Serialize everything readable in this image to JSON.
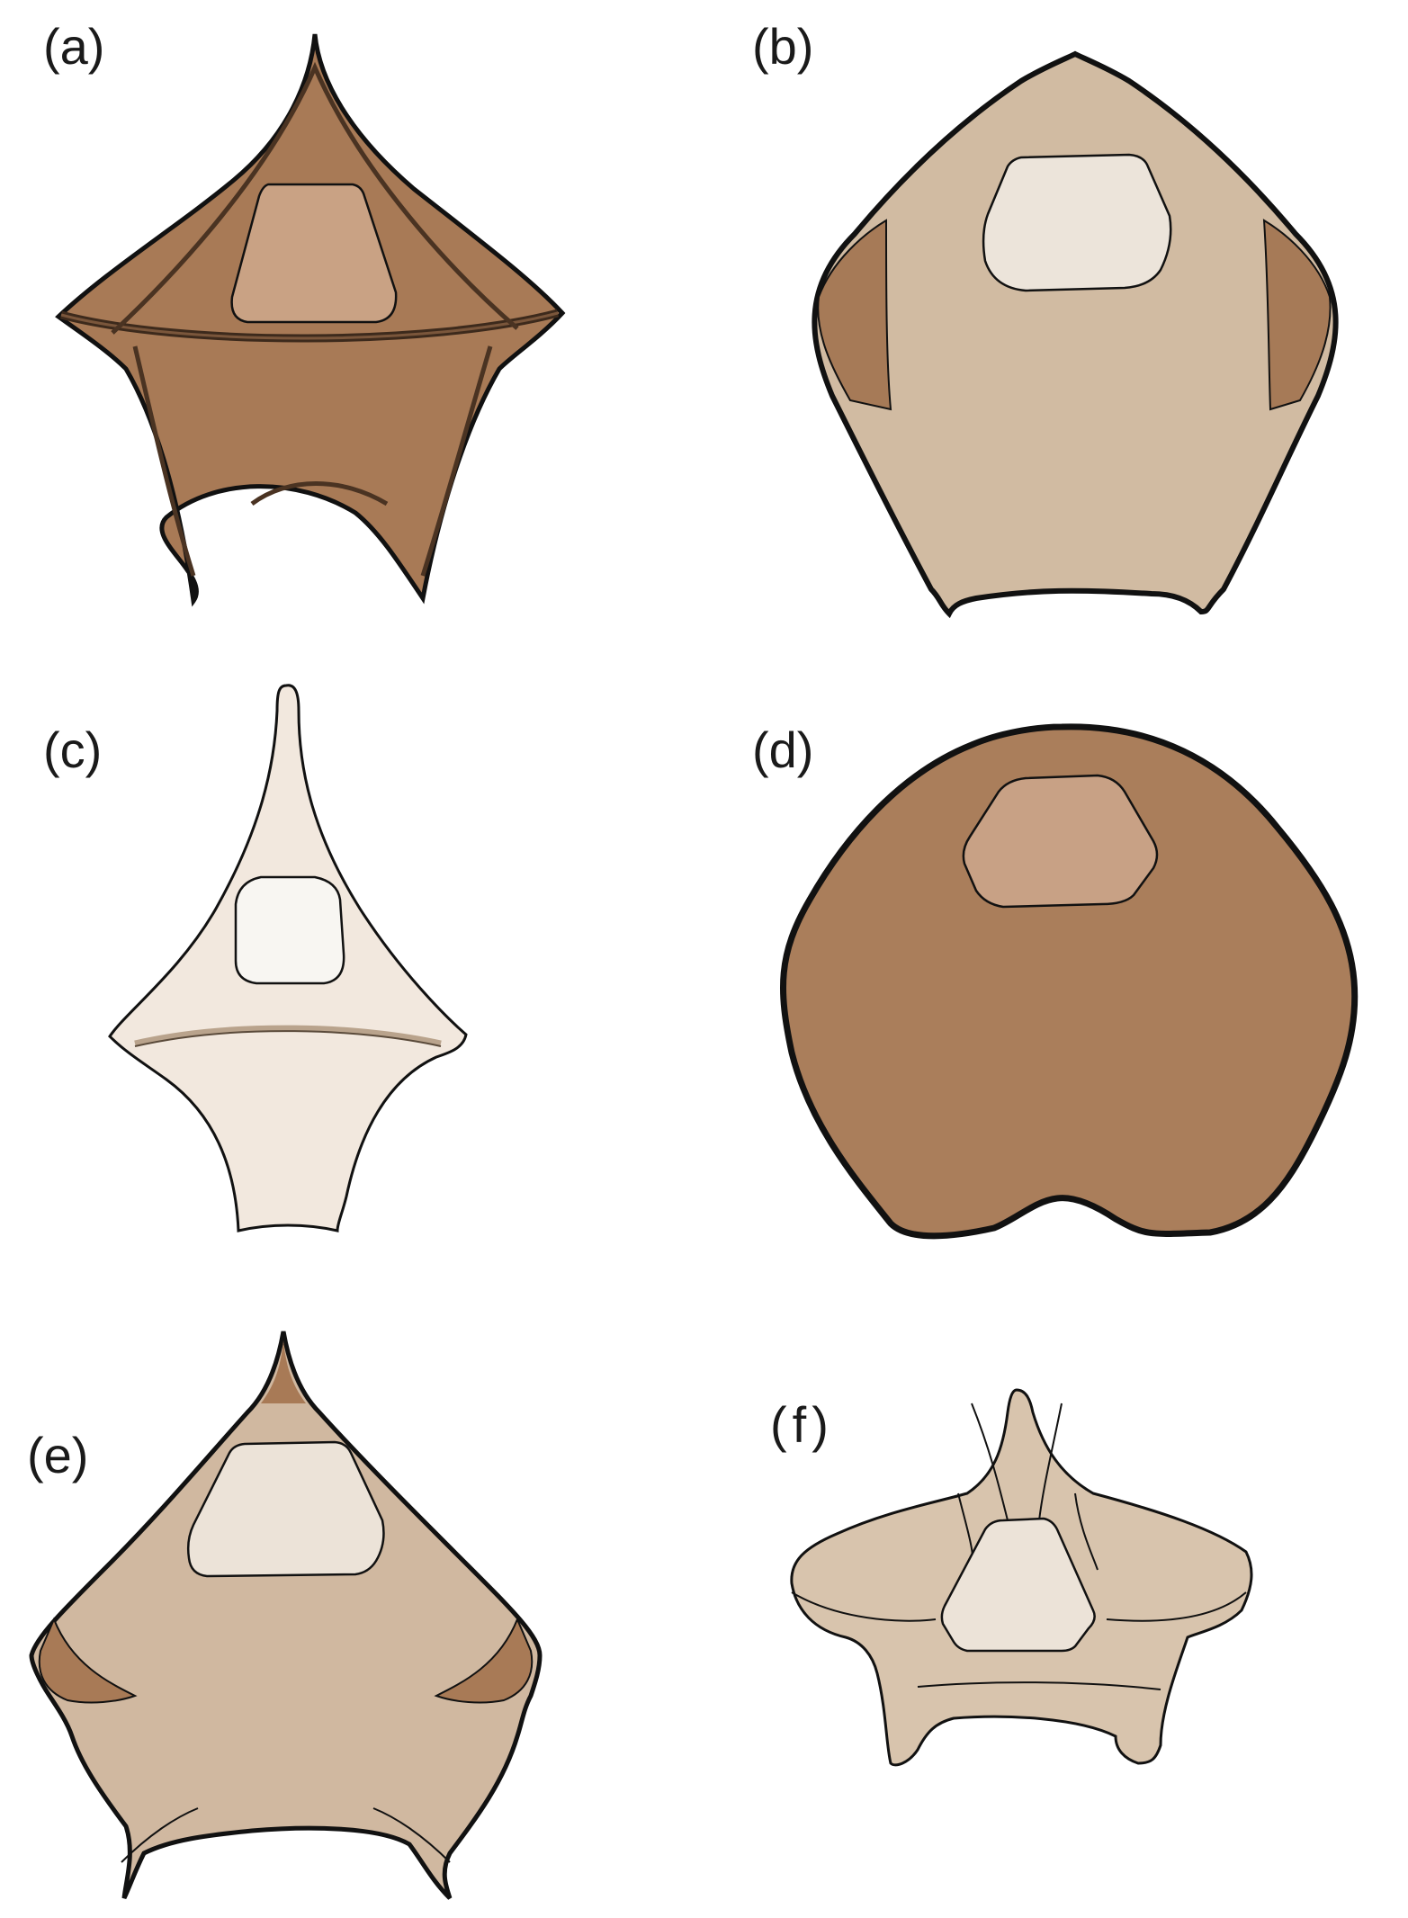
{
  "figure": {
    "panels": [
      {
        "id": "a",
        "label": "(a)",
        "fill": "#a87a56",
        "window_fill": "#c9a284"
      },
      {
        "id": "b",
        "label": "(b)",
        "fill": "#d1bba2",
        "side_fill": "#a67a57",
        "window_fill": "#ece4da"
      },
      {
        "id": "c",
        "label": "(c)",
        "fill": "#f2e8de",
        "window_fill": "#f8f6f2"
      },
      {
        "id": "d",
        "label": "(d)",
        "fill": "#aa7e5b",
        "window_fill": "#c8a185"
      },
      {
        "id": "e",
        "label": "(e)",
        "fill": "#d0b8a0",
        "side_fill": "#a87a56",
        "window_fill": "#ece3d8"
      },
      {
        "id": "f",
        "label": "(f)",
        "fill": "#d8c4ad",
        "window_fill": "#ece3d8"
      }
    ],
    "outline_color": "#111111"
  }
}
